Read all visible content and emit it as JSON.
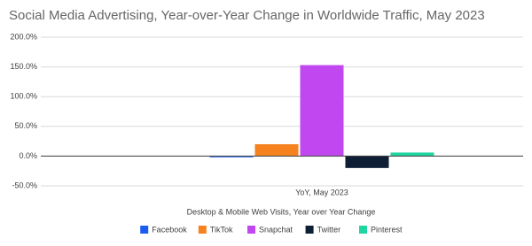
{
  "chart_data": {
    "type": "bar",
    "title": "Social Media Advertising, Year-over-Year Change in Worldwide Traffic, May 2023",
    "x_label": "Desktop & Mobile Web Visits, Year over Year Change",
    "categories": [
      "YoY, May 2023"
    ],
    "series": [
      {
        "name": "Facebook",
        "color": "#1a5cf0",
        "values": [
          -2
        ]
      },
      {
        "name": "TikTok",
        "color": "#f5821f",
        "values": [
          20
        ]
      },
      {
        "name": "Snapchat",
        "color": "#c148f0",
        "values": [
          153
        ]
      },
      {
        "name": "Twitter",
        "color": "#0e1e34",
        "values": [
          -20
        ]
      },
      {
        "name": "Pinterest",
        "color": "#1fd6a0",
        "values": [
          6
        ]
      }
    ],
    "ylim": [
      -50,
      200
    ],
    "yticks": [
      {
        "value": -50,
        "label": "-50.0%"
      },
      {
        "value": 0,
        "label": "0.0%"
      },
      {
        "value": 50,
        "label": "50.0%"
      },
      {
        "value": 100,
        "label": "100.0%"
      },
      {
        "value": 150,
        "label": "150.0%"
      },
      {
        "value": 200,
        "label": "200.0%"
      }
    ],
    "grid": true,
    "legend": "bottom"
  }
}
